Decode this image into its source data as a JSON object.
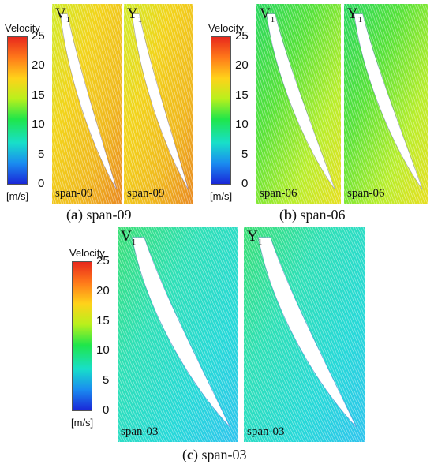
{
  "legends": [
    {
      "title": "Velocity",
      "ticks": [
        "25",
        "20",
        "15",
        "10",
        "5",
        "0"
      ],
      "unit": "[m/s]"
    },
    {
      "title": "Velocity",
      "ticks": [
        "25",
        "20",
        "15",
        "10",
        "5",
        "0"
      ],
      "unit": "[m/s]"
    },
    {
      "title": "Velocity",
      "ticks": [
        "25",
        "20",
        "15",
        "10",
        "5",
        "0"
      ],
      "unit": "[m/s]"
    }
  ],
  "panels": [
    {
      "letter": "V",
      "sub": "1",
      "span": "span-09",
      "flow": "high"
    },
    {
      "letter": "Y",
      "sub": "1",
      "span": "span-09",
      "flow": "high"
    },
    {
      "letter": "V",
      "sub": "1",
      "span": "span-06",
      "flow": "mid"
    },
    {
      "letter": "Y",
      "sub": "1",
      "span": "span-06",
      "flow": "mid"
    },
    {
      "letter": "V",
      "sub": "1",
      "span": "span-03",
      "flow": "low"
    },
    {
      "letter": "Y",
      "sub": "1",
      "span": "span-03",
      "flow": "low"
    }
  ],
  "captions": [
    {
      "tag": "a",
      "text": " span-09"
    },
    {
      "tag": "b",
      "text": " span-06"
    },
    {
      "tag": "c",
      "text": " span-03"
    }
  ],
  "colors": {
    "high": [
      "#d0ec2a",
      "#f2d41c",
      "#f0b81e",
      "#e98a22"
    ],
    "mid": [
      "#2ad860",
      "#57e23a",
      "#b8ee2c",
      "#e8df20"
    ],
    "low": [
      "#3bdf74",
      "#2fe0b6",
      "#27d9d8",
      "#2fc4ee"
    ]
  }
}
